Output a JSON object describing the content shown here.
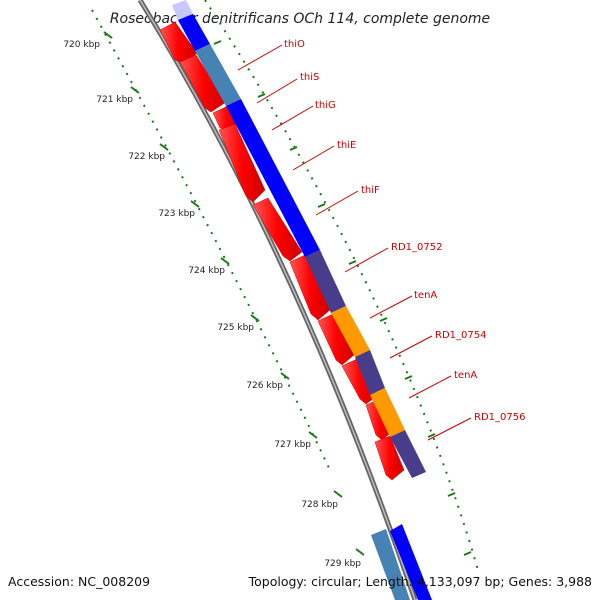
{
  "title": "Roseobacter denitrificans OCh 114, complete genome",
  "footer": {
    "accession": "Accession: NC_008209",
    "topology": "Topology: circular; Length: 4,133,097 bp; Genes: 3,988"
  },
  "axis_ticks": [
    "720 kbp",
    "721 kbp",
    "722 kbp",
    "723 kbp",
    "724 kbp",
    "725 kbp",
    "726 kbp",
    "727 kbp",
    "728 kbp",
    "729 kbp"
  ],
  "gene_labels": [
    "thiO",
    "thiS",
    "thiG",
    "thiE",
    "thiF",
    "RD1_0752",
    "tenA",
    "RD1_0754",
    "tenA",
    "RD1_0756"
  ],
  "colors": {
    "backbone": "#7a7a7a",
    "cds_forward": "#ff0000",
    "label_red": "#cc0000",
    "tick_green": "#1a7a1a",
    "blue": "#0000ff",
    "steel_blue": "#4682b4",
    "dark_slate": "#483d8b",
    "orange": "#ff9900"
  }
}
